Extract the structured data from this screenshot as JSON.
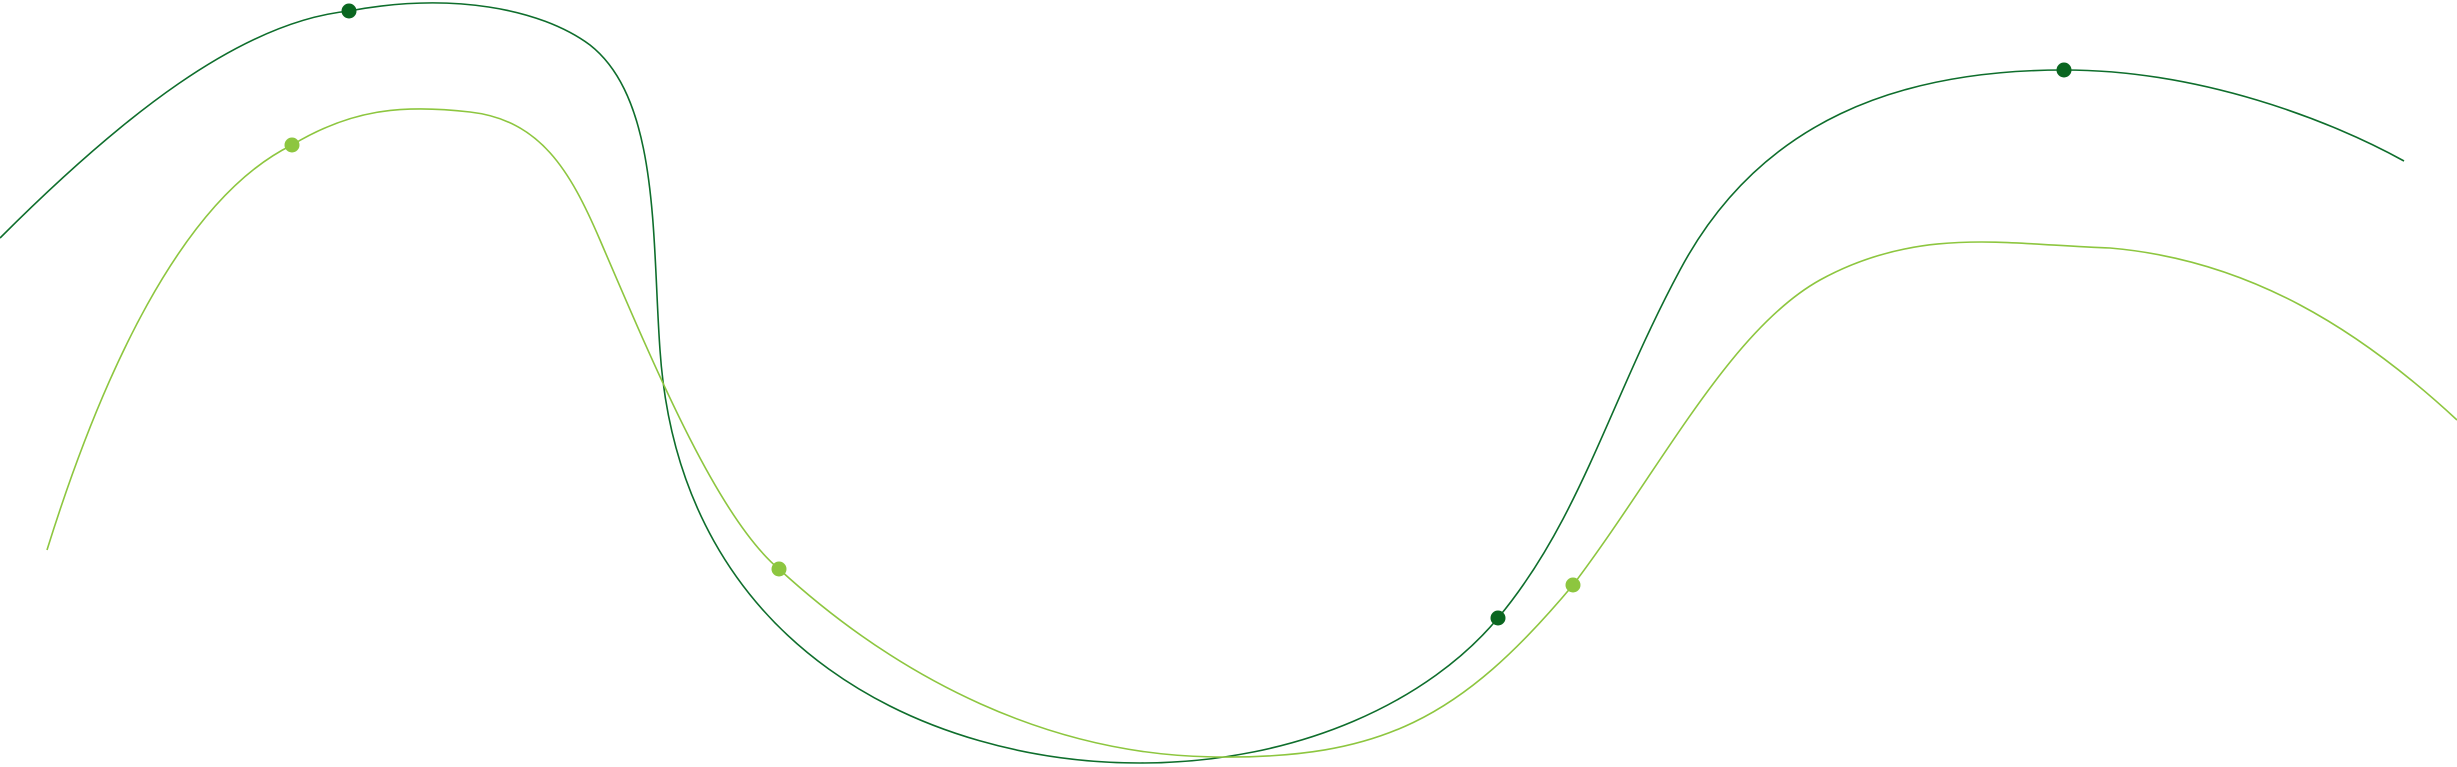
{
  "decoration": {
    "curves": [
      {
        "name": "dark-green-wave",
        "color": "#0e6e2c"
      },
      {
        "name": "light-green-wave",
        "color": "#8dc63f"
      }
    ],
    "markers": [
      {
        "name": "dark-green-marker-1",
        "color": "#0a6620"
      },
      {
        "name": "dark-green-marker-2",
        "color": "#0a6620"
      },
      {
        "name": "dark-green-marker-3",
        "color": "#0a6620"
      },
      {
        "name": "light-green-marker-1",
        "color": "#8dc63f"
      },
      {
        "name": "light-green-marker-2",
        "color": "#8dc63f"
      },
      {
        "name": "light-green-marker-3",
        "color": "#8dc63f"
      }
    ]
  }
}
